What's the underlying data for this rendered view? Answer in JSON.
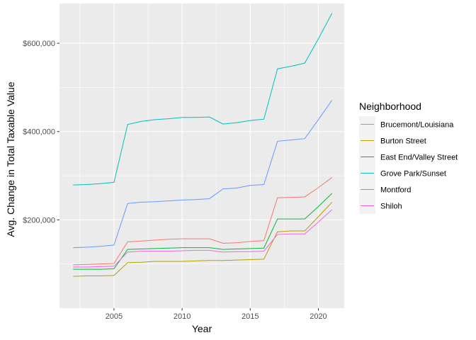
{
  "chart_data": {
    "type": "line",
    "title": "",
    "xlabel": "Year",
    "ylabel": "Avg. Change in Total Taxable Value",
    "xlim": [
      2001.0,
      2021.9
    ],
    "ylim": [
      0,
      690000
    ],
    "x_ticks": [
      2005,
      2010,
      2015,
      2020
    ],
    "x_tick_labels": [
      "2005",
      "2010",
      "2015",
      "2020"
    ],
    "y_ticks": [
      200000,
      400000,
      600000
    ],
    "y_tick_labels": [
      "$200,000",
      "$400,000",
      "$600,000"
    ],
    "grid": true,
    "legend_title": "Neighborhood",
    "legend_position": "right",
    "x": [
      2002,
      2003,
      2004,
      2005,
      2006,
      2007,
      2008,
      2009,
      2010,
      2011,
      2012,
      2013,
      2014,
      2015,
      2016,
      2017,
      2018,
      2019,
      2020,
      2021
    ],
    "series": [
      {
        "name": "Brucemont/Louisiana",
        "color": "#F8766D",
        "values": [
          98000,
          99000,
          100000,
          101000,
          150000,
          152000,
          154000,
          156000,
          157000,
          157000,
          157000,
          147000,
          148000,
          151000,
          153000,
          250000,
          251000,
          252000,
          273000,
          296000
        ]
      },
      {
        "name": "Burton Street",
        "color": "#B79F00",
        "values": [
          72000,
          73000,
          73000,
          74000,
          103000,
          104000,
          106000,
          106000,
          106000,
          107000,
          108000,
          108000,
          109000,
          110000,
          111000,
          173000,
          175000,
          175000,
          207000,
          240000
        ]
      },
      {
        "name": "East End/Valley Street",
        "color": "#00BA38",
        "values": [
          88000,
          88000,
          88000,
          89000,
          133000,
          134000,
          135000,
          136000,
          137000,
          137000,
          137000,
          133000,
          134000,
          135000,
          136000,
          202000,
          202000,
          202000,
          230000,
          260000
        ]
      },
      {
        "name": "Grove Park/Sunset",
        "color": "#00BFC4",
        "values": [
          279000,
          280000,
          282000,
          285000,
          416000,
          423000,
          427000,
          429000,
          432000,
          432000,
          433000,
          417000,
          420000,
          425000,
          428000,
          542000,
          548000,
          555000,
          610000,
          668000
        ]
      },
      {
        "name": "Montford",
        "color": "#619CFF",
        "values": [
          137000,
          138000,
          140000,
          143000,
          237000,
          240000,
          241000,
          243000,
          245000,
          246000,
          248000,
          270000,
          272000,
          278000,
          280000,
          378000,
          381000,
          384000,
          427000,
          471000
        ]
      },
      {
        "name": "Shiloh",
        "color": "#F564E3",
        "values": [
          93000,
          93000,
          94000,
          95000,
          127000,
          129000,
          129000,
          129000,
          130000,
          131000,
          131000,
          127000,
          128000,
          128000,
          129000,
          167000,
          168000,
          168000,
          195000,
          223000
        ]
      }
    ]
  }
}
